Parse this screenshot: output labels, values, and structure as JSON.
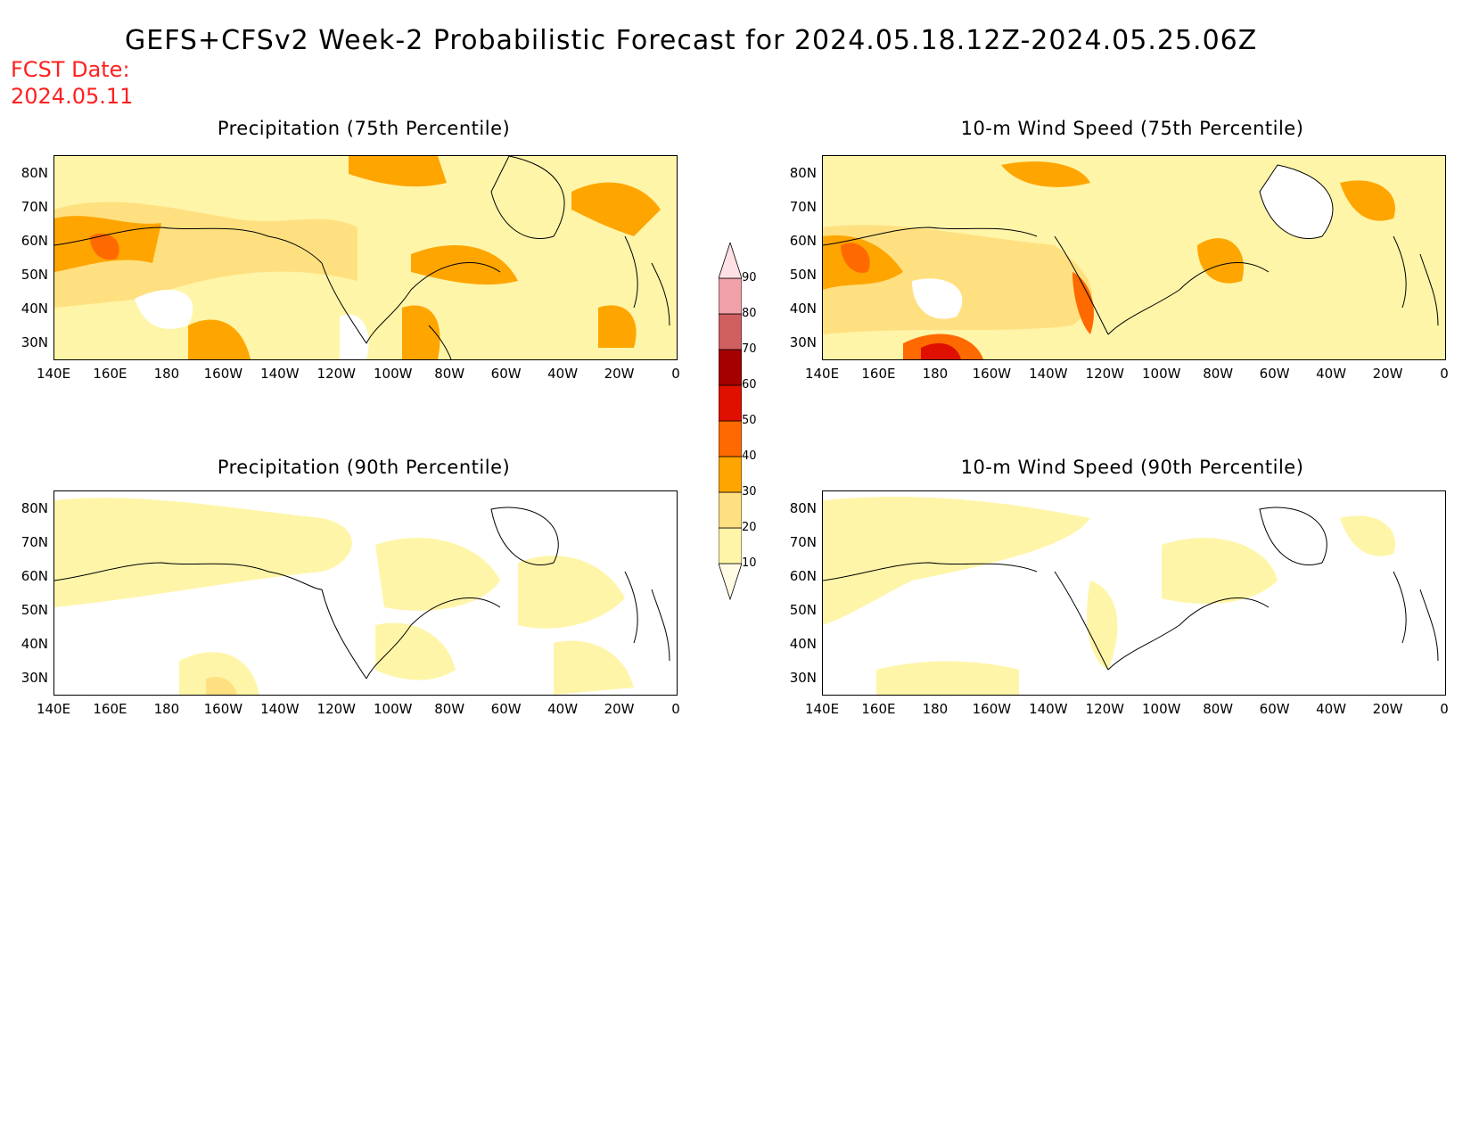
{
  "header": {
    "title": "GEFS+CFSv2 Week-2 Probabilistic Forecast for 2024.05.18.12Z-2024.05.25.06Z",
    "fcst_label": "FCST Date:",
    "fcst_date": "2024.05.11"
  },
  "panels": [
    {
      "title": "Precipitation (75th Percentile)",
      "variable": "precip",
      "percentile": 75
    },
    {
      "title": "10-m Wind Speed (75th Percentile)",
      "variable": "wind",
      "percentile": 75
    },
    {
      "title": "Precipitation (90th Percentile)",
      "variable": "precip",
      "percentile": 90
    },
    {
      "title": "10-m Wind Speed (90th Percentile)",
      "variable": "wind",
      "percentile": 90
    }
  ],
  "axes": {
    "lat_labels": [
      "80N",
      "70N",
      "60N",
      "50N",
      "40N",
      "30N"
    ],
    "lon_labels": [
      "140E",
      "160E",
      "180",
      "160W",
      "140W",
      "120W",
      "100W",
      "80W",
      "60W",
      "40W",
      "20W",
      "0"
    ]
  },
  "colorbar": {
    "levels": [
      "10",
      "20",
      "30",
      "40",
      "50",
      "60",
      "70",
      "80",
      "90"
    ],
    "colors": [
      "#fffbe5",
      "#fff5a8",
      "#ffe080",
      "#ffa500",
      "#ff6a00",
      "#e01000",
      "#a50000",
      "#d06060",
      "#f0a0a8",
      "#ffe0e4"
    ]
  }
}
